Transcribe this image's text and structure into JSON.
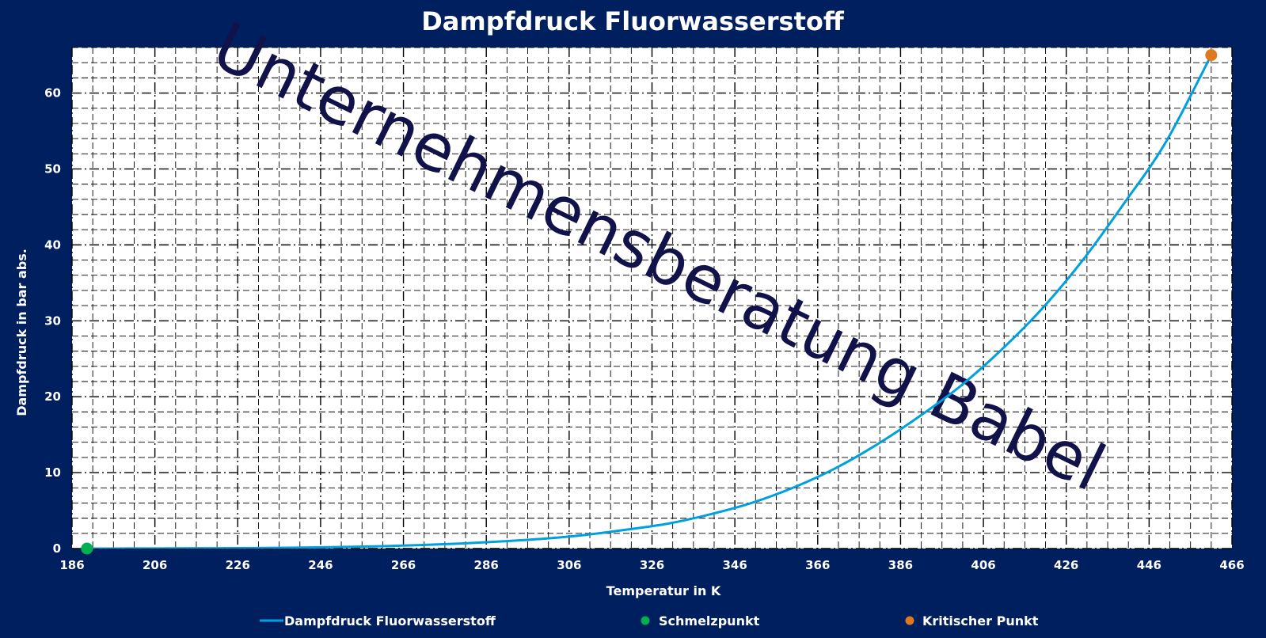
{
  "chart_data": {
    "type": "line",
    "title": "Dampfdruck Fluorwasserstoff",
    "xlabel": "Temperatur in K",
    "ylabel": "Dampfdruck in bar abs.",
    "xlim": [
      186,
      466
    ],
    "ylim": [
      0,
      66
    ],
    "x_ticks": [
      186,
      206,
      226,
      246,
      266,
      286,
      306,
      326,
      346,
      366,
      386,
      406,
      426,
      446,
      466
    ],
    "y_ticks": [
      0,
      10,
      20,
      30,
      40,
      50,
      60
    ],
    "grid": true,
    "legend_position": "bottom",
    "watermark": "Unternehmensberatung Babel",
    "colors": {
      "background": "#001f5f",
      "plot_area": "#ffffff",
      "curve": "#00a0e0",
      "melting_point": "#00b050",
      "critical_point": "#e07820",
      "watermark": "#12124a"
    },
    "series": [
      {
        "name": "Dampfdruck Fluorwasserstoff",
        "kind": "line",
        "x": [
          189.6,
          200,
          210,
          220,
          230,
          240,
          250,
          260,
          270,
          280,
          290,
          300,
          310,
          320,
          330,
          340,
          350,
          360,
          370,
          380,
          390,
          400,
          410,
          420,
          430,
          440,
          450,
          461
        ],
        "y": [
          0.003,
          0.009,
          0.02,
          0.04,
          0.07,
          0.12,
          0.19,
          0.3,
          0.45,
          0.67,
          0.95,
          1.3,
          1.8,
          2.5,
          3.3,
          4.5,
          6,
          8,
          10.5,
          13.6,
          17.2,
          21.2,
          26,
          31.5,
          38,
          45.5,
          53.5,
          65
        ]
      },
      {
        "name": "Schmelzpunkt",
        "kind": "point",
        "x": [
          189.6
        ],
        "y": [
          0
        ]
      },
      {
        "name": "Kritischer Punkt",
        "kind": "point",
        "x": [
          461
        ],
        "y": [
          65
        ]
      }
    ]
  }
}
